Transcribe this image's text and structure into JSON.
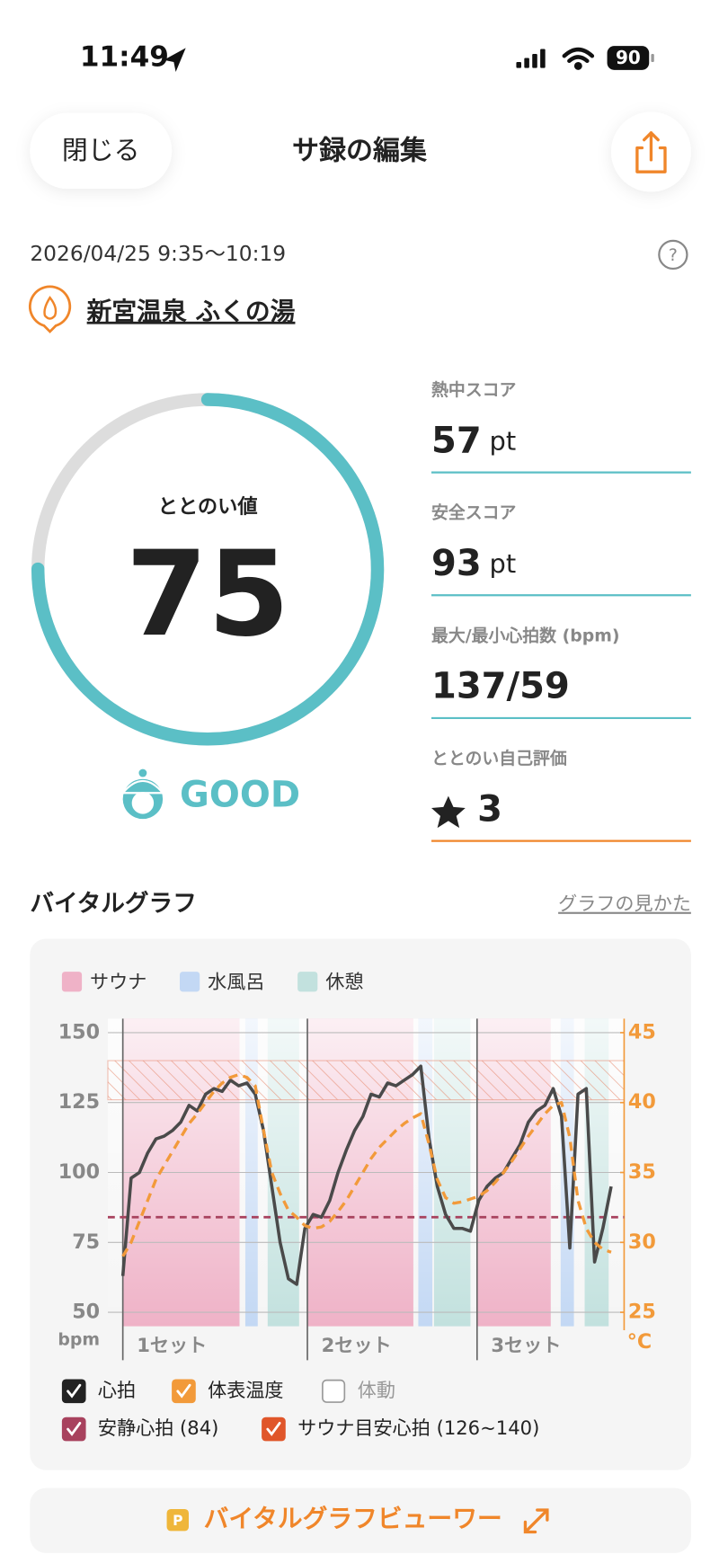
{
  "status_bar": {
    "time": "11:49",
    "battery": "90"
  },
  "header": {
    "close": "閉じる",
    "title": "サ録の編集"
  },
  "session": {
    "datetime": "2026/04/25 9:35〜10:19",
    "place": "新宮温泉 ふくの湯"
  },
  "score": {
    "label": "ととのい値",
    "value": 75,
    "max": 100,
    "rating": "GOOD"
  },
  "metrics": [
    {
      "label": "熱中スコア",
      "value": 57,
      "unit": "pt"
    },
    {
      "label": "安全スコア",
      "value": 93,
      "unit": "pt"
    },
    {
      "label": "最大/最小心拍数 (bpm)",
      "value": "137/59"
    },
    {
      "label": "ととのい自己評価",
      "value": 3
    }
  ],
  "vital_graph": {
    "title": "バイタルグラフ",
    "help_link": "グラフの見かた"
  },
  "chart_data": {
    "type": "line",
    "series": [
      {
        "name": "心拍",
        "color": "#4a4a4a",
        "checked": true,
        "values": [
          63,
          98,
          100,
          107,
          112,
          113,
          115,
          118,
          124,
          122,
          128,
          130,
          129,
          133,
          131,
          132,
          128,
          115,
          95,
          75,
          62,
          60,
          80,
          85,
          84,
          90,
          100,
          108,
          115,
          120,
          128,
          127,
          132,
          131,
          133,
          135,
          138,
          112,
          95,
          85,
          80,
          80,
          79,
          90,
          95,
          98,
          100,
          105,
          110,
          118,
          122,
          124,
          130,
          120,
          73,
          128,
          130,
          68,
          80,
          95
        ]
      },
      {
        "name": "体表温度",
        "color": "#f29a3a",
        "checked": true,
        "axis": "y2",
        "dashed": true,
        "values": [
          29,
          30,
          31.5,
          33,
          34.5,
          35.5,
          36.5,
          37.5,
          38.5,
          39.2,
          40,
          40.8,
          41.4,
          41.8,
          42,
          41.8,
          41.2,
          38,
          35,
          33.5,
          32.3,
          31.8,
          31.2,
          31,
          31.1,
          31.5,
          32.2,
          33,
          34,
          35,
          36,
          36.8,
          37.4,
          38,
          38.5,
          38.9,
          39.2,
          37,
          34.5,
          33.2,
          32.8,
          32.9,
          33.1,
          33.3,
          33.7,
          34.3,
          35,
          35.8,
          36.7,
          37.6,
          38.4,
          39.2,
          39.8,
          40,
          37.5,
          33,
          31,
          30,
          29.5,
          29.3
        ]
      }
    ],
    "unchecked_legend": [
      "体動"
    ],
    "ylim": [
      45,
      155
    ],
    "yticks": [
      50,
      75,
      100,
      125,
      150
    ],
    "y_label": "bpm",
    "y2lim": [
      24,
      46
    ],
    "y2ticks": [
      25,
      30,
      35,
      40,
      45
    ],
    "y2_label": "°C",
    "grid": true,
    "zones": [
      {
        "name": "サウナ",
        "color": "#efb2c7",
        "spans": [
          [
            0,
            14.1
          ],
          [
            22.3,
            35.1
          ],
          [
            42.8,
            51.7
          ]
        ]
      },
      {
        "name": "水風呂",
        "color": "#c3d8f4",
        "spans": [
          [
            14.8,
            16.3
          ],
          [
            35.7,
            37.4
          ],
          [
            52.9,
            54.5
          ]
        ]
      },
      {
        "name": "休憩",
        "color": "#c2e1de",
        "spans": [
          [
            17.5,
            21.3
          ],
          [
            37.6,
            42
          ],
          [
            55.8,
            58.7
          ]
        ]
      }
    ],
    "set_labels": [
      "1セット",
      "2セット",
      "3セット"
    ],
    "reference_line": {
      "name": "安静心拍 (84)",
      "value": 84,
      "color": "#a8425e"
    },
    "target_zone": {
      "name": "サウナ目安心拍 (126~140)",
      "range": [
        126,
        140
      ],
      "color": "#e0562a"
    }
  },
  "viewer_button": "バイタルグラフビューワー"
}
